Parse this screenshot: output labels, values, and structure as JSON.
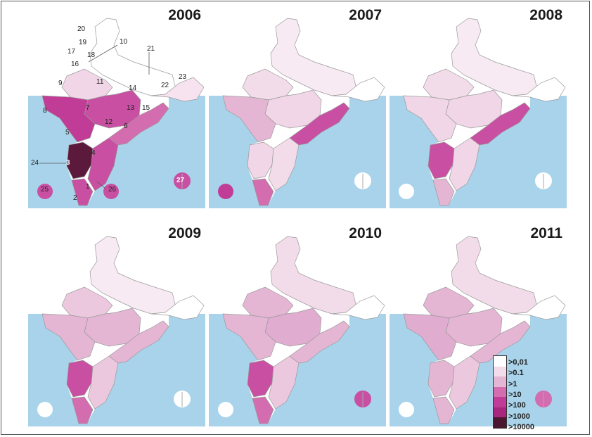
{
  "figure": {
    "panels": [
      {
        "year": "2006",
        "variant": "full",
        "colors": {
          "north": "#ffffff",
          "nw": "#f0d6e6",
          "c": "#c84fa2",
          "w": "#c03c96",
          "s": "#5b1a3c",
          "se": "#c84fa2",
          "e": "#d46cb0",
          "ne": "#f6e3ef",
          "kerala": "#c84fa2",
          "islands_w": "#c84fa2",
          "islands_e": "#c84fa2"
        }
      },
      {
        "year": "2007",
        "variant": "plain",
        "colors": {
          "north": "#f7eaf2",
          "nw": "#f3dce9",
          "c": "#f0d6e6",
          "w": "#e4b6d3",
          "s": "#f0d6e6",
          "se": "#f3dce9",
          "e": "#c84fa2",
          "ne": "#ffffff",
          "kerala": "#d46cb0",
          "islands_w": "#c03c96",
          "islands_e": "#ffffff"
        }
      },
      {
        "year": "2008",
        "variant": "plain",
        "colors": {
          "north": "#f7eaf2",
          "nw": "#f3dce9",
          "c": "#f0d6e6",
          "w": "#f0d6e6",
          "s": "#c84fa2",
          "se": "#f0d6e6",
          "e": "#c84fa2",
          "ne": "#ffffff",
          "kerala": "#e4b6d3",
          "islands_w": "#ffffff",
          "islands_e": "#ffffff"
        }
      },
      {
        "year": "2009",
        "variant": "plain",
        "colors": {
          "north": "#f7eaf2",
          "nw": "#ecc8de",
          "c": "#e4b6d3",
          "w": "#e4b6d3",
          "s": "#c84fa2",
          "se": "#ecc8de",
          "e": "#e4b6d3",
          "ne": "#ffffff",
          "kerala": "#d46cb0",
          "islands_w": "#ffffff",
          "islands_e": "#ffffff"
        }
      },
      {
        "year": "2010",
        "variant": "plain",
        "colors": {
          "north": "#f3dce9",
          "nw": "#e4b6d3",
          "c": "#e0acd0",
          "w": "#e4b6d3",
          "s": "#c84fa2",
          "se": "#ecc8de",
          "e": "#e4b6d3",
          "ne": "#ffffff",
          "kerala": "#d46cb0",
          "islands_w": "#ffffff",
          "islands_e": "#c84fa2"
        }
      },
      {
        "year": "2011",
        "variant": "plain",
        "colors": {
          "north": "#f3dce9",
          "nw": "#e4b6d3",
          "c": "#e4b6d3",
          "w": "#e0acd0",
          "s": "#e4b6d3",
          "se": "#ecc8de",
          "e": "#e4b6d3",
          "ne": "#ffffff",
          "kerala": "#e4b6d3",
          "islands_w": "#ffffff",
          "islands_e": "#d46cb0"
        }
      }
    ],
    "state_numbers": [
      "1",
      "2",
      "3",
      "4",
      "5",
      "6",
      "7",
      "8",
      "9",
      "10",
      "11",
      "12",
      "13",
      "14",
      "15",
      "16",
      "17",
      "18",
      "19",
      "20",
      "21",
      "22",
      "23",
      "24",
      "25",
      "26",
      "27"
    ],
    "sea_color": "#a9d3ea",
    "border_color": "#9a9a9a"
  },
  "legend": {
    "labels": [
      ">0,01",
      ">0.1",
      ">1",
      ">10",
      ">100",
      ">1000",
      ">10000"
    ],
    "colors": [
      "#ffffff",
      "#f3dce9",
      "#e4b6d3",
      "#d46cb0",
      "#c03c96",
      "#a8267e",
      "#4a1630"
    ]
  }
}
